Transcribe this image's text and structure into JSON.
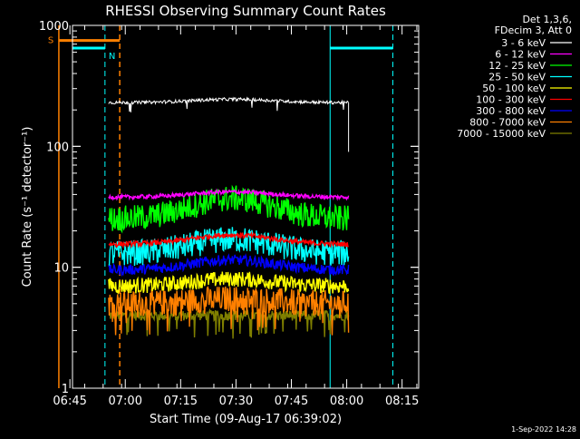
{
  "chart_data": {
    "type": "line",
    "title": "RHESSI Observing Summary Count Rates",
    "xlabel": "Start Time (09-Aug-17 06:39:02)",
    "ylabel": "Count Rate (s⁻¹ detector⁻¹)",
    "y_scale": "log",
    "ylim": [
      1,
      1000
    ],
    "xlim_minutes": [
      6.7,
      100.5
    ],
    "x_ticks": [
      {
        "label": "06:45",
        "minute": 6
      },
      {
        "label": "07:00",
        "minute": 21
      },
      {
        "label": "07:15",
        "minute": 36
      },
      {
        "label": "07:30",
        "minute": 51
      },
      {
        "label": "07:45",
        "minute": 66
      },
      {
        "label": "08:00",
        "minute": 81
      },
      {
        "label": "08:15",
        "minute": 96
      }
    ],
    "y_ticks": [
      {
        "label": "1",
        "value": 1
      },
      {
        "label": "10",
        "value": 10
      },
      {
        "label": "100",
        "value": 100
      },
      {
        "label": "1000",
        "value": 1000
      }
    ],
    "legend_header": [
      "Det 1,3,6,",
      "FDecim 3, Att 0"
    ],
    "legend_placement": "right",
    "series": [
      {
        "name": "3 - 6 keV",
        "color": "#000000",
        "legend_color": "#ffffff",
        "base": 230,
        "trend": 15,
        "noise": 0.03
      },
      {
        "name": "6 - 12 keV",
        "color": "#ff00ff",
        "base": 38,
        "trend": 4,
        "noise": 0.04
      },
      {
        "name": "12 - 25 keV",
        "color": "#00ff00",
        "base": 25,
        "trend": 12,
        "noise": 0.25
      },
      {
        "name": "25 - 50 keV",
        "color": "#00ffff",
        "base": 13,
        "trend": 4,
        "noise": 0.25
      },
      {
        "name": "50 - 100 keV",
        "color": "#ffff00",
        "base": 7,
        "trend": 1,
        "noise": 0.15
      },
      {
        "name": "100 - 300 keV",
        "color": "#ff0000",
        "base": 15.5,
        "trend": 3,
        "noise": 0.05
      },
      {
        "name": "300 - 800 keV",
        "color": "#0000ff",
        "base": 9.5,
        "trend": 2,
        "noise": 0.1
      },
      {
        "name": "800 - 7000 keV",
        "color": "#ff8000",
        "base": 5,
        "trend": 0.5,
        "noise": 0.25
      },
      {
        "name": "7000 - 15000 keV",
        "color": "#808000",
        "base": 4,
        "trend": 0,
        "noise": 0.1
      }
    ],
    "data_interval_minutes": [
      16.5,
      81.5
    ],
    "saa": {
      "label": "S",
      "color": "#ff8000",
      "start": 3,
      "end": 19.5,
      "level": 750
    },
    "night": {
      "label": "N",
      "color": "#00ffff",
      "intervals": [
        [
          -1,
          15.5
        ],
        [
          76.5,
          93.5
        ]
      ],
      "level": 650
    },
    "footer": "1-Sep-2022 14:28"
  }
}
